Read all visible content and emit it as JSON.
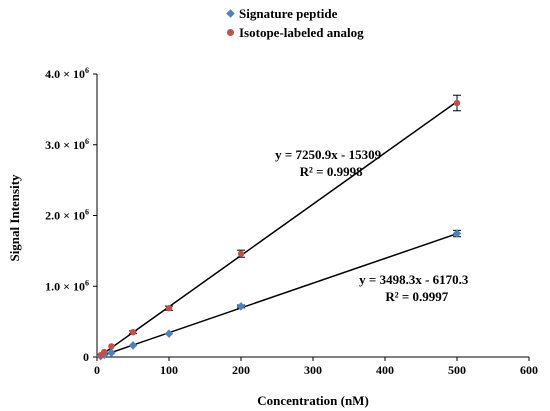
{
  "chart_data": {
    "type": "scatter",
    "xlabel": "Concentration (nM)",
    "ylabel": "Signal Intensity",
    "xlim": [
      0,
      600
    ],
    "ylim": [
      0,
      4000000
    ],
    "x_ticks": [
      0,
      100,
      200,
      300,
      400,
      500,
      600
    ],
    "x_tick_labels": [
      "0",
      "100",
      "200",
      "300",
      "400",
      "500",
      "600"
    ],
    "y_ticks": [
      0,
      1000000,
      2000000,
      3000000,
      4000000
    ],
    "y_tick_labels": [
      {
        "mant": "0",
        "exp": ""
      },
      {
        "mant": "1.0 × 10",
        "exp": "6"
      },
      {
        "mant": "2.0 × 10",
        "exp": "6"
      },
      {
        "mant": "3.0 × 10",
        "exp": "6"
      },
      {
        "mant": "4.0 × 10",
        "exp": "6"
      }
    ],
    "legend_position": "top-center",
    "grid": false,
    "series": [
      {
        "name": "Signature peptide",
        "marker": "diamond",
        "color": "#4f81bd",
        "x": [
          5,
          10,
          20,
          50,
          100,
          200,
          500
        ],
        "y": [
          12000,
          30000,
          60000,
          165000,
          330000,
          715000,
          1745000
        ],
        "error": [
          0,
          0,
          0,
          0,
          0,
          20000,
          45000
        ],
        "fit": {
          "slope": 3498.3,
          "intercept": -6170.3,
          "x_range": [
            5,
            500
          ]
        },
        "equation": "y = 3498.3x - 6170.3",
        "r2": "R² = 0.9997",
        "label_at": [
          440,
          1030000
        ]
      },
      {
        "name": "Isotope-labeled analog",
        "marker": "circle",
        "color": "#c0504d",
        "x": [
          5,
          10,
          20,
          50,
          100,
          200,
          500
        ],
        "y": [
          25000,
          70000,
          150000,
          350000,
          690000,
          1460000,
          3590000
        ],
        "error": [
          0,
          0,
          0,
          20000,
          30000,
          50000,
          110000
        ],
        "fit": {
          "slope": 7250.9,
          "intercept": -15309,
          "x_range": [
            5,
            500
          ]
        },
        "equation": "y = 7250.9x - 15309",
        "r2": "R² = 0.9998",
        "label_at": [
          321,
          2800000
        ]
      }
    ]
  }
}
